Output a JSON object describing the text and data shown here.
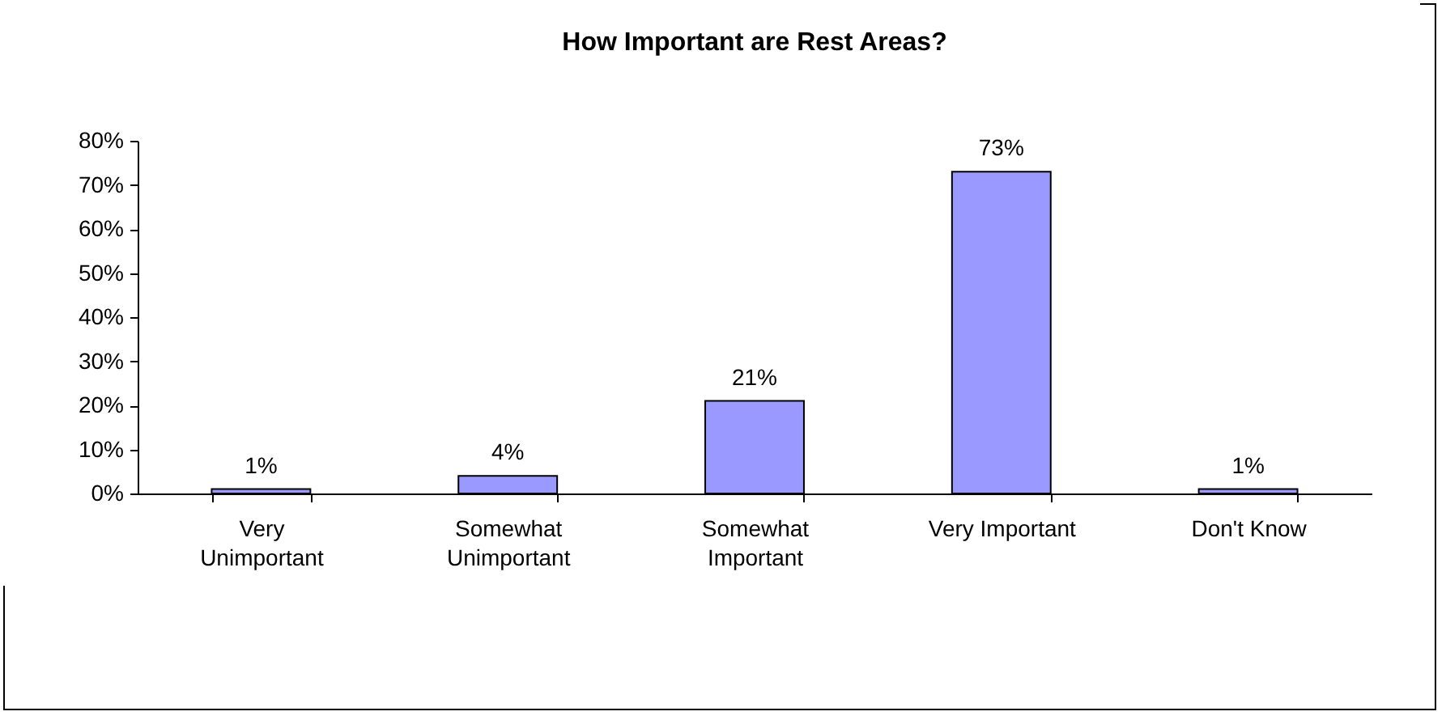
{
  "chart_data": {
    "type": "bar",
    "title": "How Important are Rest Areas?",
    "categories": [
      "Very Unimportant",
      "Somewhat Unimportant",
      "Somewhat Important",
      "Very Important",
      "Don't Know"
    ],
    "values": [
      1,
      4,
      21,
      73,
      1
    ],
    "value_labels": [
      "1%",
      "4%",
      "21%",
      "73%",
      "1%"
    ],
    "color": "#9999ff",
    "ylim": [
      0,
      80
    ],
    "yticks": [
      {
        "value": 0,
        "label": "0%"
      },
      {
        "value": 10,
        "label": "10%"
      },
      {
        "value": 20,
        "label": "20%"
      },
      {
        "value": 30,
        "label": "30%"
      },
      {
        "value": 40,
        "label": "40%"
      },
      {
        "value": 50,
        "label": "50%"
      },
      {
        "value": 60,
        "label": "60%"
      },
      {
        "value": 70,
        "label": "70%"
      },
      {
        "value": 80,
        "label": "80%"
      }
    ],
    "grid": false
  }
}
